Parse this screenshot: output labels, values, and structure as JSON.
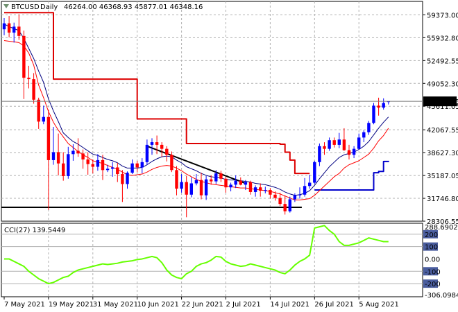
{
  "chart_data": [
    {
      "type": "candlestick",
      "header": {
        "symbol": "BTCUSD",
        "timeframe": "Daily",
        "ohlc_text": "46264.00 46368.93 45877.01 46348.16"
      },
      "y_ticks": [
        "59373.00",
        "55932.80",
        "52492.55",
        "49052.30",
        "45611.05",
        "42067.55",
        "38627.30",
        "35187.05",
        "31746.80",
        "28306.55"
      ],
      "ylim": [
        28306.55,
        61400
      ],
      "last_price": "46348.16",
      "x_ticks": [
        {
          "label": "7 May 2021",
          "index": 0
        },
        {
          "label": "19 May 2021",
          "index": 9
        },
        {
          "label": "31 May 2021",
          "index": 18
        },
        {
          "label": "10 Jun 2021",
          "index": 27
        },
        {
          "label": "22 Jun 2021",
          "index": 36
        },
        {
          "label": "2 Jul 2021",
          "index": 45
        },
        {
          "label": "14 Jul 2021",
          "index": 54
        },
        {
          "label": "26 Jul 2021",
          "index": 63
        },
        {
          "label": "5 Aug 2021",
          "index": 72
        }
      ],
      "candles": [
        [
          57200,
          58900,
          56300,
          58100
        ],
        [
          58100,
          59200,
          56000,
          56700
        ],
        [
          56700,
          58200,
          55200,
          57600
        ],
        [
          57600,
          59400,
          55600,
          56200
        ],
        [
          56200,
          57000,
          46700,
          49900
        ],
        [
          49900,
          51700,
          48300,
          49700
        ],
        [
          49700,
          50600,
          46000,
          46600
        ],
        [
          46600,
          46900,
          42200,
          43300
        ],
        [
          43300,
          45700,
          42900,
          44000
        ],
        [
          44000,
          45100,
          30000,
          37500
        ],
        [
          37500,
          42500,
          36800,
          38700
        ],
        [
          38700,
          41500,
          35200,
          37000
        ],
        [
          37000,
          38700,
          34400,
          35100
        ],
        [
          35100,
          39500,
          34700,
          38400
        ],
        [
          38400,
          39900,
          37400,
          38900
        ],
        [
          38900,
          40800,
          38000,
          38500
        ],
        [
          38500,
          39100,
          36200,
          37600
        ],
        [
          37600,
          38700,
          35300,
          36900
        ],
        [
          36900,
          37600,
          35500,
          36500
        ],
        [
          36500,
          38400,
          35900,
          37500
        ],
        [
          37500,
          38300,
          34500,
          36000
        ],
        [
          36000,
          36800,
          35700,
          36200
        ],
        [
          36200,
          37200,
          35000,
          36400
        ],
        [
          36400,
          37100,
          34200,
          35400
        ],
        [
          35400,
          36000,
          31200,
          33900
        ],
        [
          33900,
          35800,
          33200,
          35600
        ],
        [
          35600,
          37600,
          35400,
          37000
        ],
        [
          37000,
          37400,
          35700,
          36400
        ],
        [
          36400,
          37800,
          35500,
          37200
        ],
        [
          37200,
          40600,
          36800,
          39800
        ],
        [
          39800,
          40800,
          38300,
          40200
        ],
        [
          40200,
          41200,
          38400,
          39800
        ],
        [
          39800,
          40200,
          38000,
          39200
        ],
        [
          39200,
          39600,
          37300,
          38300
        ],
        [
          38300,
          38800,
          35700,
          36000
        ],
        [
          36000,
          36600,
          32200,
          33200
        ],
        [
          33200,
          35400,
          32600,
          34200
        ],
        [
          34200,
          35100,
          28900,
          32300
        ],
        [
          32300,
          34900,
          31900,
          34000
        ],
        [
          34000,
          35400,
          33700,
          34500
        ],
        [
          34500,
          35600,
          31600,
          32200
        ],
        [
          32200,
          35100,
          31500,
          34600
        ],
        [
          34600,
          35200,
          33800,
          34300
        ],
        [
          34300,
          36000,
          33900,
          35500
        ],
        [
          35500,
          35900,
          34200,
          34700
        ],
        [
          34700,
          35000,
          32600,
          33400
        ],
        [
          33400,
          34100,
          32800,
          33800
        ],
        [
          33800,
          35200,
          33300,
          34400
        ],
        [
          34400,
          34900,
          33700,
          33800
        ],
        [
          33800,
          34500,
          33000,
          34200
        ],
        [
          34200,
          34400,
          32300,
          32700
        ],
        [
          32700,
          33700,
          32000,
          33400
        ],
        [
          33400,
          34000,
          32000,
          32900
        ],
        [
          32900,
          33500,
          32500,
          33000
        ],
        [
          33000,
          33300,
          31700,
          32300
        ],
        [
          32300,
          32800,
          31400,
          31800
        ],
        [
          31800,
          32600,
          30600,
          30900
        ],
        [
          30900,
          32200,
          29300,
          29800
        ],
        [
          29800,
          32000,
          29600,
          31600
        ],
        [
          31600,
          32500,
          31200,
          32200
        ],
        [
          32200,
          33400,
          31700,
          32300
        ],
        [
          32300,
          34800,
          32000,
          33600
        ],
        [
          33600,
          35300,
          33200,
          34100
        ],
        [
          34100,
          37400,
          33900,
          37200
        ],
        [
          37200,
          40000,
          36600,
          39600
        ],
        [
          39600,
          40200,
          38300,
          39200
        ],
        [
          39200,
          40900,
          38900,
          40500
        ],
        [
          40500,
          40900,
          39400,
          39800
        ],
        [
          39800,
          41600,
          39300,
          40600
        ],
        [
          40600,
          42300,
          38900,
          39000
        ],
        [
          39000,
          39800,
          37600,
          38300
        ],
        [
          38300,
          39600,
          37800,
          39200
        ],
        [
          39200,
          41500,
          39100,
          40900
        ],
        [
          40900,
          42000,
          40200,
          41700
        ],
        [
          41700,
          43400,
          41300,
          43100
        ],
        [
          43100,
          46100,
          42900,
          45700
        ],
        [
          45700,
          46900,
          44200,
          45400
        ],
        [
          45400,
          46800,
          45100,
          46100
        ],
        [
          46264,
          46368.93,
          45877.01,
          46348.16
        ]
      ],
      "overlays": {
        "fast_ma": {
          "color": "#000080",
          "values": [
            58000,
            57600,
            57300,
            57000,
            55800,
            54300,
            52800,
            50900,
            49200,
            46700,
            44900,
            43300,
            41600,
            40900,
            40300,
            39900,
            39400,
            38900,
            38400,
            38200,
            37900,
            37600,
            37400,
            37100,
            36600,
            36300,
            36300,
            36300,
            36400,
            36800,
            37300,
            37700,
            38000,
            38100,
            38000,
            37500,
            37100,
            36500,
            36200,
            35900,
            35500,
            35200,
            35000,
            34900,
            34800,
            34600,
            34500,
            34500,
            34400,
            34300,
            34200,
            34000,
            33900,
            33800,
            33600,
            33400,
            33100,
            32700,
            32400,
            32200,
            32300,
            32500,
            32900,
            33700,
            34700,
            35600,
            36500,
            37200,
            37900,
            38300,
            38500,
            38700,
            39100,
            39600,
            40300,
            41300,
            42300,
            43200,
            44000
          ]
        },
        "slow_ma": {
          "color": "#ff0000",
          "values": [
            55500,
            55400,
            55300,
            55200,
            54700,
            53600,
            51800,
            48800,
            46900,
            44800,
            43200,
            42000,
            41000,
            40000,
            39400,
            38800,
            38300,
            37900,
            37400,
            37200,
            37000,
            36700,
            36400,
            36100,
            35700,
            35300,
            35200,
            35300,
            35400,
            35700,
            36100,
            36400,
            36600,
            36700,
            36600,
            36300,
            35900,
            35400,
            35000,
            34600,
            34300,
            34100,
            33900,
            33800,
            33700,
            33600,
            33500,
            33400,
            33300,
            33300,
            33200,
            33100,
            33000,
            32900,
            32800,
            32600,
            32400,
            32100,
            31800,
            31500,
            31500,
            31600,
            31700,
            32200,
            32900,
            33600,
            34300,
            35000,
            35500,
            36300,
            36800,
            37100,
            37400,
            37900,
            38400,
            39300,
            40400,
            41200,
            42300
          ]
        },
        "red_step_upper": {
          "color": "#dd0000",
          "values": [
            59700,
            59700,
            59700,
            59700,
            59700,
            59700,
            59700,
            59700,
            59700,
            59700,
            49700,
            49700,
            49700,
            49700,
            49700,
            49700,
            49700,
            49700,
            49700,
            49700,
            49700,
            49700,
            49700,
            49700,
            49700,
            49700,
            49700,
            43700,
            43700,
            43700,
            43700,
            43700,
            43700,
            43700,
            43700,
            43700,
            43700,
            40000,
            40000,
            40000,
            40000,
            40000,
            40000,
            40000,
            40000,
            40000,
            40000,
            40000,
            40000,
            40000,
            40000,
            40000,
            40000,
            40000,
            40000,
            40000,
            39900,
            38700,
            37500,
            35500,
            35500,
            35500,
            35500,
            null,
            null,
            null,
            null,
            null,
            null,
            null,
            null,
            null,
            null,
            null,
            null,
            null,
            null,
            null,
            null
          ]
        },
        "blue_step_lower": {
          "color": "#0000cc",
          "values": [
            null,
            null,
            null,
            null,
            null,
            null,
            null,
            null,
            null,
            null,
            null,
            null,
            null,
            null,
            null,
            null,
            null,
            null,
            null,
            null,
            null,
            null,
            null,
            null,
            null,
            null,
            null,
            null,
            null,
            null,
            null,
            null,
            null,
            null,
            null,
            null,
            null,
            null,
            null,
            null,
            null,
            null,
            null,
            null,
            null,
            null,
            null,
            null,
            null,
            null,
            null,
            null,
            null,
            null,
            null,
            null,
            null,
            null,
            null,
            null,
            null,
            null,
            null,
            33000,
            33000,
            33000,
            33000,
            33000,
            33000,
            33000,
            33000,
            33000,
            33000,
            33000,
            33000,
            35600,
            35800,
            37300,
            37400
          ]
        },
        "support_line": {
          "color": "#000000",
          "from": [
            0,
            30400
          ],
          "to": [
            59,
            30400
          ]
        },
        "trendline": {
          "color": "#000000",
          "from": [
            29,
            39600
          ],
          "to": [
            49,
            34000
          ]
        }
      },
      "cci": {
        "label": "CCI(27) 139.5449",
        "ylim": [
          -306.0984,
          288.6902
        ],
        "y_ticks": [
          "288.6902",
          "200",
          "100",
          "0.00",
          "-100",
          "-200",
          "-306.0984"
        ],
        "levels": [
          200,
          100,
          -100,
          -200
        ],
        "color": "#66ff00",
        "values": [
          0,
          0,
          -20,
          -40,
          -60,
          -100,
          -130,
          -160,
          -180,
          -200,
          -190,
          -170,
          -150,
          -140,
          -110,
          -90,
          -80,
          -70,
          -60,
          -50,
          -40,
          -45,
          -40,
          -35,
          -25,
          -20,
          -15,
          -5,
          0,
          10,
          20,
          10,
          -30,
          -90,
          -130,
          -150,
          -160,
          -120,
          -100,
          -60,
          -40,
          -30,
          -10,
          20,
          15,
          -20,
          -40,
          -50,
          -60,
          -55,
          -40,
          -50,
          -60,
          -70,
          -80,
          -90,
          -110,
          -120,
          -90,
          -50,
          -20,
          0,
          30,
          250,
          260,
          270,
          230,
          200,
          140,
          110,
          110,
          120,
          130,
          150,
          170,
          160,
          150,
          140,
          140
        ]
      }
    }
  ]
}
